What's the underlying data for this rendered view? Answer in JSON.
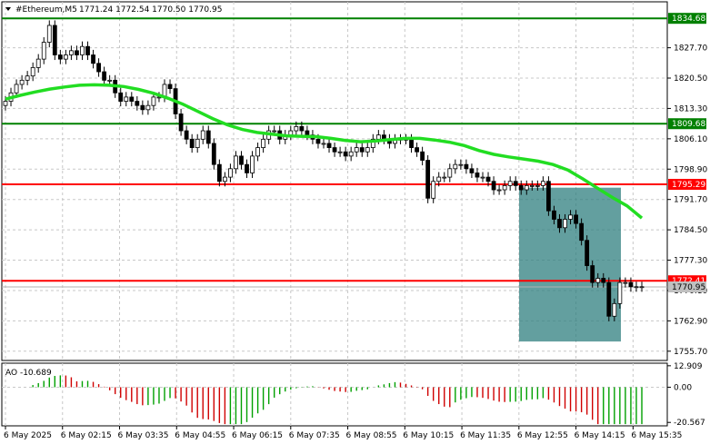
{
  "header": {
    "symbol": "#Ethereum,M5",
    "ohlc": "1771.24 1772.54 1770.50 1770.95"
  },
  "price_axis": {
    "ticks": [
      "1827.70",
      "1820.50",
      "1813.30",
      "1806.10",
      "1798.90",
      "1791.70",
      "1784.50",
      "1777.30",
      "1770.10",
      "1762.90",
      "1755.70"
    ],
    "range": [
      1753.5,
      1838.6
    ]
  },
  "levels": [
    {
      "label": "1834.68",
      "price": 1834.68,
      "color": "#008000"
    },
    {
      "label": "1809.68",
      "price": 1809.68,
      "color": "#008000"
    },
    {
      "label": "1795.29",
      "price": 1795.29,
      "color": "#ff0000"
    },
    {
      "label": "1772.41",
      "price": 1772.41,
      "color": "#ff0000"
    },
    {
      "label": "1770.95",
      "price": 1770.95,
      "color": "#c0c0c0"
    }
  ],
  "ma_color": "#22dd22",
  "zone_color": "#2f7f7f",
  "indicator": {
    "label": "AO -10.689",
    "ticks": [
      "12.909",
      "0.00",
      "-20.567"
    ],
    "range": [
      -22.5,
      14.0
    ]
  },
  "time_axis": [
    "6 May 2025",
    "6 May 02:15",
    "6 May 03:35",
    "6 May 04:55",
    "6 May 06:15",
    "6 May 07:35",
    "6 May 08:55",
    "6 May 10:15",
    "6 May 11:35",
    "6 May 12:55",
    "6 May 14:15",
    "6 May 15:35"
  ],
  "chart_data": {
    "type": "candlestick",
    "title": "#Ethereum,M5",
    "ylim": [
      1753.5,
      1838.6
    ],
    "closes": [
      1815,
      1817,
      1819,
      1820,
      1821,
      1823,
      1825,
      1829,
      1833,
      1826,
      1825,
      1826,
      1827,
      1826,
      1828,
      1826,
      1824,
      1822,
      1820,
      1820,
      1817,
      1815,
      1816,
      1815,
      1814,
      1813,
      1814,
      1816,
      1816,
      1819,
      1818,
      1812,
      1808,
      1806,
      1804,
      1806,
      1808,
      1805,
      1800,
      1796,
      1797,
      1799,
      1802,
      1800,
      1798,
      1802,
      1804,
      1806,
      1808,
      1808,
      1806,
      1807,
      1808,
      1809,
      1808,
      1807,
      1806,
      1805,
      1805,
      1804,
      1803,
      1803,
      1802,
      1803,
      1804,
      1803,
      1804,
      1806,
      1807,
      1806,
      1805,
      1806,
      1806,
      1806,
      1804,
      1803,
      1801,
      1792,
      1796,
      1797,
      1797,
      1799,
      1800,
      1800,
      1799,
      1798,
      1797,
      1797,
      1796,
      1794,
      1794,
      1795,
      1796,
      1795,
      1794,
      1795,
      1795,
      1795,
      1796,
      1789,
      1787,
      1785,
      1787,
      1788,
      1786,
      1782,
      1776,
      1772,
      1773,
      1772,
      1764,
      1767,
      1772,
      1772,
      1771,
      1771,
      1771
    ],
    "ma": {
      "name": "",
      "values": [
        1815.5,
        1816.4,
        1817.2,
        1817.9,
        1818.4,
        1818.8,
        1818.9,
        1818.8,
        1818.5,
        1817.8,
        1816.9,
        1815.7,
        1814.3,
        1812.6,
        1810.9,
        1809.4,
        1808.3,
        1807.6,
        1807.2,
        1806.8,
        1806.7,
        1806.6,
        1806.2,
        1805.7,
        1805.4,
        1805.6,
        1805.9,
        1806.2,
        1806.2,
        1805.8,
        1805.3,
        1804.5,
        1803.3,
        1802.4,
        1801.8,
        1801.3,
        1800.8,
        1800.0,
        1798.7,
        1796.6,
        1794.4,
        1792.2,
        1790.2,
        1787.3
      ]
    }
  }
}
